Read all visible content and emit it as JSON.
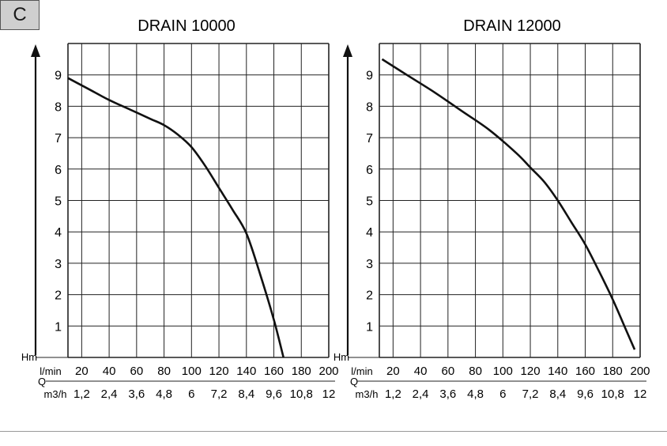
{
  "badge": "C",
  "chart_data": [
    {
      "type": "line",
      "title": "DRAIN 10000",
      "ylabel": "Hm",
      "q_label": "Q",
      "x_unit_label": "l/min",
      "x2_unit_label": "m3/h",
      "xlim": [
        10,
        200
      ],
      "ylim": [
        0,
        10
      ],
      "grid": true,
      "x_ticks": [
        "20",
        "40",
        "60",
        "80",
        "100",
        "120",
        "140",
        "160",
        "180",
        "200"
      ],
      "x2_ticks": [
        "1,2",
        "2,4",
        "3,6",
        "4,8",
        "6",
        "7,2",
        "8,4",
        "9,6",
        "10,8",
        "12"
      ],
      "y_ticks": [
        "1",
        "2",
        "3",
        "4",
        "5",
        "6",
        "7",
        "8",
        "9"
      ],
      "series": [
        {
          "x": [
            10,
            25,
            40,
            55,
            70,
            80,
            90,
            100,
            110,
            120,
            130,
            140,
            150,
            160,
            167
          ],
          "y": [
            8.9,
            8.55,
            8.2,
            7.9,
            7.6,
            7.4,
            7.1,
            6.7,
            6.1,
            5.4,
            4.7,
            3.95,
            2.65,
            1.2,
            0
          ]
        }
      ]
    },
    {
      "type": "line",
      "title": "DRAIN 12000",
      "ylabel": "Hm",
      "q_label": "Q",
      "x_unit_label": "l/min",
      "x2_unit_label": "m3/h",
      "xlim": [
        10,
        200
      ],
      "ylim": [
        0,
        10
      ],
      "grid": true,
      "x_ticks": [
        "20",
        "40",
        "60",
        "80",
        "100",
        "120",
        "140",
        "160",
        "180",
        "200"
      ],
      "x2_ticks": [
        "1,2",
        "2,4",
        "3,6",
        "4,8",
        "6",
        "7,2",
        "8,4",
        "9,6",
        "10,8",
        "12"
      ],
      "y_ticks": [
        "1",
        "2",
        "3",
        "4",
        "5",
        "6",
        "7",
        "8",
        "9"
      ],
      "series": [
        {
          "x": [
            12,
            30,
            50,
            70,
            90,
            110,
            120,
            130,
            140,
            150,
            160,
            170,
            180,
            190,
            196
          ],
          "y": [
            9.5,
            9.0,
            8.45,
            7.85,
            7.25,
            6.5,
            6.05,
            5.6,
            5.0,
            4.3,
            3.6,
            2.75,
            1.85,
            0.85,
            0.25
          ]
        }
      ]
    }
  ]
}
